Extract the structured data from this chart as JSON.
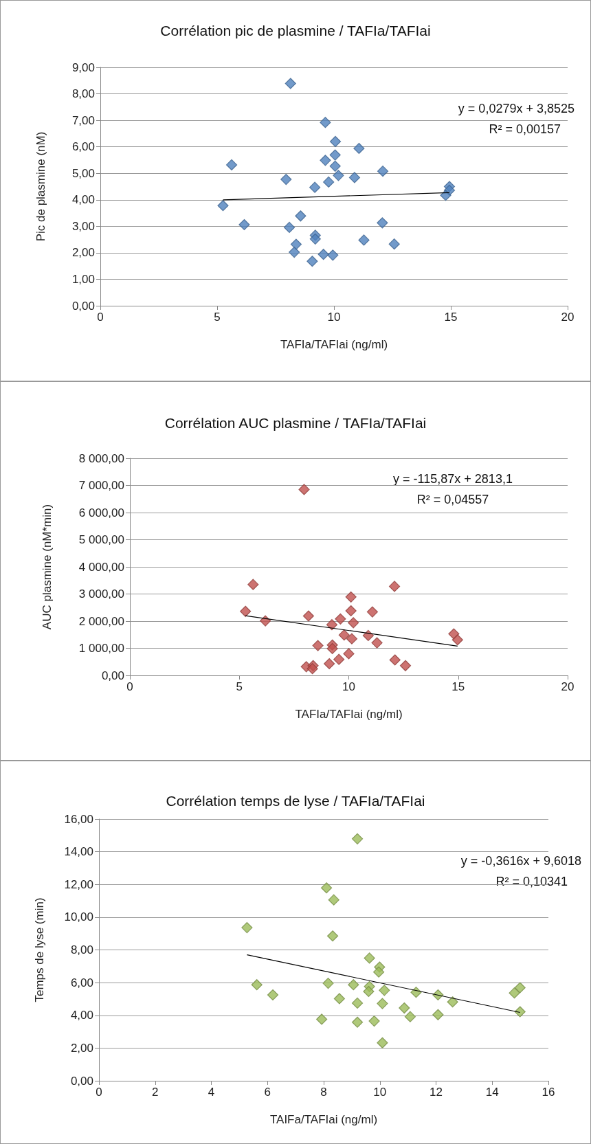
{
  "chart_data": [
    {
      "type": "scatter",
      "title": "Corrélation pic de plasmine / TAFIa/TAFIai",
      "xlabel": "TAFIa/TAFIai (ng/ml)",
      "ylabel": "Pic de plasmine (nM)",
      "xlim": [
        0,
        20
      ],
      "xticks": [
        0,
        5,
        10,
        15,
        20
      ],
      "ylim": [
        0,
        9
      ],
      "yticks": [
        {
          "value": 0,
          "label": "0,00"
        },
        {
          "value": 1,
          "label": "1,00"
        },
        {
          "value": 2,
          "label": "2,00"
        },
        {
          "value": 3,
          "label": "3,00"
        },
        {
          "value": 4,
          "label": "4,00"
        },
        {
          "value": 5,
          "label": "5,00"
        },
        {
          "value": 6,
          "label": "6,00"
        },
        {
          "value": 7,
          "label": "7,00"
        },
        {
          "value": 8,
          "label": "8,00"
        },
        {
          "value": 9,
          "label": "9,00"
        }
      ],
      "grid": "y",
      "marker": "diamond",
      "annotations": [
        "y = 0,0279x + 3,8525",
        "R² = 0,00157"
      ],
      "series": [
        {
          "color": "#4f81bd",
          "x": [
            8.14,
            9.63,
            10.06,
            11.07,
            10.05,
            9.63,
            5.62,
            10.05,
            12.09,
            7.95,
            10.19,
            9.77,
            10.88,
            9.18,
            14.94,
            14.94,
            14.78,
            5.25,
            8.57,
            6.16,
            12.07,
            8.09,
            9.2,
            9.2,
            11.28,
            12.58,
            8.38,
            8.3,
            9.55,
            9.95,
            9.07
          ],
          "values": [
            8.39,
            6.92,
            6.2,
            5.94,
            5.69,
            5.49,
            5.32,
            5.27,
            5.08,
            4.77,
            4.92,
            4.67,
            4.84,
            4.47,
            4.5,
            4.36,
            4.17,
            3.78,
            3.39,
            3.06,
            3.13,
            2.96,
            2.66,
            2.52,
            2.48,
            2.33,
            2.32,
            2.02,
            1.94,
            1.91,
            1.68
          ]
        },
        {
          "type": "line",
          "color": "#000000",
          "marker": "none",
          "x": [
            5.25,
            14.94
          ],
          "values": [
            4.0,
            4.27
          ]
        }
      ]
    },
    {
      "type": "scatter",
      "title": "Corrélation AUC plasmine / TAFIa/TAFIai",
      "xlabel": "TAFIa/TAFIai (ng/ml)",
      "ylabel": "AUC plasmine (nM*min)",
      "xlim": [
        0,
        20
      ],
      "xticks": [
        0,
        5,
        10,
        15,
        20
      ],
      "ylim": [
        0,
        8000
      ],
      "yticks": [
        {
          "value": 0,
          "label": "0,00"
        },
        {
          "value": 1000,
          "label": "1 000,00"
        },
        {
          "value": 2000,
          "label": "2 000,00"
        },
        {
          "value": 3000,
          "label": "3 000,00"
        },
        {
          "value": 4000,
          "label": "4 000,00"
        },
        {
          "value": 5000,
          "label": "5 000,00"
        },
        {
          "value": 6000,
          "label": "6 000,00"
        },
        {
          "value": 7000,
          "label": "7 000,00"
        },
        {
          "value": 8000,
          "label": "8 000,00"
        }
      ],
      "grid": "y",
      "marker": "diamond",
      "annotations": [
        "y = -115,87x + 2813,1",
        "R² = 0,04557"
      ],
      "series": [
        {
          "color": "#c0504d",
          "x": [
            7.96,
            5.63,
            12.09,
            10.1,
            5.28,
            11.08,
            10.1,
            8.16,
            9.62,
            6.19,
            10.21,
            9.23,
            9.79,
            10.89,
            10.14,
            14.8,
            14.97,
            11.29,
            9.25,
            9.25,
            8.59,
            10.0,
            9.55,
            12.11,
            12.59,
            9.11,
            8.06,
            8.37,
            8.34
          ],
          "values": [
            6850,
            3350,
            3280,
            2890,
            2360,
            2340,
            2380,
            2190,
            2080,
            2010,
            1940,
            1870,
            1490,
            1470,
            1350,
            1530,
            1310,
            1200,
            1120,
            990,
            1100,
            800,
            590,
            570,
            360,
            430,
            320,
            360,
            250
          ]
        },
        {
          "type": "line",
          "color": "#000000",
          "marker": "none",
          "x": [
            5.28,
            14.97
          ],
          "values": [
            2200,
            1080
          ]
        }
      ]
    },
    {
      "type": "scatter",
      "title": "Corrélation temps de lyse / TAFIa/TAFIai",
      "xlabel": "TAIFa/TAFIai (ng/ml)",
      "ylabel": "Temps de lyse (min)",
      "xlim": [
        0,
        16
      ],
      "xticks": [
        0,
        2,
        4,
        6,
        8,
        10,
        12,
        14,
        16
      ],
      "ylim": [
        0,
        16
      ],
      "yticks": [
        {
          "value": 0,
          "label": "0,00"
        },
        {
          "value": 2,
          "label": "2,00"
        },
        {
          "value": 4,
          "label": "4,00"
        },
        {
          "value": 6,
          "label": "6,00"
        },
        {
          "value": 8,
          "label": "8,00"
        },
        {
          "value": 10,
          "label": "10,00"
        },
        {
          "value": 12,
          "label": "12,00"
        },
        {
          "value": 14,
          "label": "14,00"
        },
        {
          "value": 16,
          "label": "16,00"
        }
      ],
      "grid": "y",
      "marker": "diamond",
      "annotations": [
        "y = -0,3616x + 9,6018",
        "R² = 0,10341"
      ],
      "series": [
        {
          "color": "#9bbb59",
          "x": [
            9.2,
            8.1,
            8.36,
            5.27,
            8.32,
            9.63,
            9.99,
            9.96,
            8.16,
            5.62,
            9.06,
            9.63,
            9.6,
            10.16,
            6.19,
            11.29,
            12.07,
            14.79,
            14.99,
            8.56,
            9.2,
            10.09,
            12.59,
            10.87,
            11.08,
            12.07,
            14.99,
            7.93,
            9.2,
            9.8,
            10.09
          ],
          "values": [
            14.79,
            11.79,
            11.06,
            9.36,
            8.85,
            7.5,
            6.95,
            6.65,
            5.96,
            5.87,
            5.87,
            5.76,
            5.46,
            5.53,
            5.25,
            5.41,
            5.25,
            5.37,
            5.69,
            5.02,
            4.75,
            4.72,
            4.82,
            4.45,
            3.92,
            4.04,
            4.22,
            3.76,
            3.58,
            3.65,
            2.32
          ]
        },
        {
          "type": "line",
          "color": "#000000",
          "marker": "none",
          "x": [
            5.27,
            14.99
          ],
          "values": [
            7.7,
            4.18
          ]
        }
      ]
    }
  ]
}
